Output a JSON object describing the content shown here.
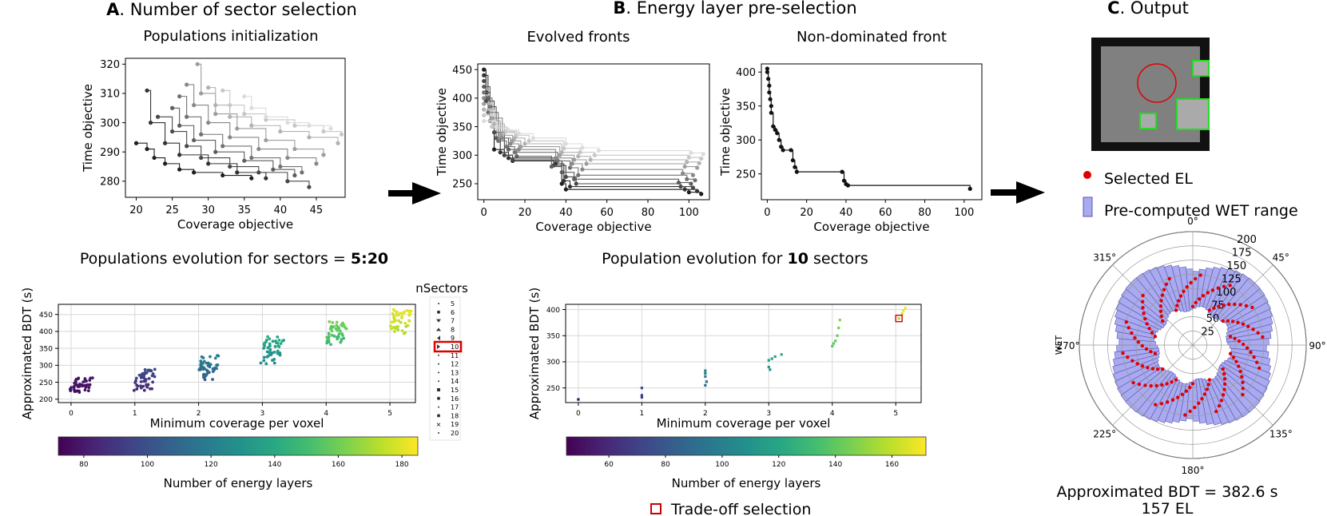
{
  "panels": {
    "a_letter": "A",
    "a_title": ". Number of sector selection",
    "b_letter": "B",
    "b_title": ". Energy layer pre-selection",
    "c_letter": "C",
    "c_title": ". Output"
  },
  "sub_titles": {
    "pop_init": "Populations initialization",
    "evolved": "Evolved fronts",
    "nondom": "Non-dominated front",
    "pop_evo_prefix": "Populations evolution for sectors = ",
    "pop_evo_bold": "5:20",
    "pop10_prefix": "Population evolution for ",
    "pop10_bold": "10",
    "pop10_suffix": " sectors"
  },
  "legend_sectors": {
    "title": "nSectors",
    "items": [
      "5",
      "6",
      "7",
      "8",
      "9",
      "10",
      "11",
      "12",
      "13",
      "14",
      "15",
      "16",
      "17",
      "18",
      "19",
      "20"
    ],
    "highlight": "10"
  },
  "output_legend": {
    "selected_el": "Selected EL",
    "wet_range": "Pre-computed WET range",
    "tradeoff": "Trade-off selection"
  },
  "result": {
    "bdt": "Approximated BDT = 382.6 s",
    "el": "157 EL"
  },
  "colors": {
    "purple": "#440154",
    "yellow": "#fde725",
    "red": "#e00000",
    "wet_fill": "#aaaaee",
    "wet_stroke": "#5555bb",
    "green": "#22dd22",
    "frame_dark": "#222222",
    "frame_mid": "#777777",
    "frame_light": "#bbbbbb"
  },
  "chart_data": [
    {
      "id": "pop_init",
      "type": "line",
      "title": "Populations initialization",
      "xlabel": "Coverage objective",
      "ylabel": "Time objective",
      "xlim": [
        18.5,
        49
      ],
      "ylim": [
        274.5,
        322
      ],
      "xticks": [
        20,
        25,
        30,
        35,
        40,
        45
      ],
      "yticks": [
        280,
        290,
        300,
        310,
        320
      ],
      "series_summary": "Multiple step-shaped Pareto fronts (dark to light gray), each starting near coverage 20-35 and stepping down to ~278-300",
      "series": [
        {
          "x": [
            20,
            21.5,
            22.5,
            24,
            26,
            28,
            32,
            36
          ],
          "y": [
            293,
            291,
            288,
            286,
            284,
            283,
            282,
            281
          ]
        },
        {
          "x": [
            21.5,
            22,
            24,
            26,
            30,
            34,
            38
          ],
          "y": [
            311,
            300,
            293,
            289,
            286,
            283,
            281
          ]
        },
        {
          "x": [
            23,
            25,
            27,
            29,
            33,
            37,
            41,
            44
          ],
          "y": [
            302,
            297,
            292,
            288,
            285,
            283,
            280,
            278
          ]
        },
        {
          "x": [
            25,
            26,
            28,
            31,
            35,
            39,
            42
          ],
          "y": [
            305,
            299,
            294,
            290,
            287,
            284,
            282
          ]
        },
        {
          "x": [
            26,
            27,
            29,
            32,
            36,
            40,
            43
          ],
          "y": [
            309,
            302,
            296,
            292,
            288,
            285,
            283
          ]
        },
        {
          "x": [
            27,
            28,
            30,
            33,
            37,
            41,
            45
          ],
          "y": [
            313,
            306,
            300,
            295,
            291,
            288,
            286
          ]
        },
        {
          "x": [
            28.5,
            29,
            31,
            34,
            38,
            42,
            46
          ],
          "y": [
            320,
            310,
            303,
            298,
            294,
            291,
            289
          ]
        },
        {
          "x": [
            30,
            31,
            33,
            36,
            40,
            44,
            48
          ],
          "y": [
            312,
            306,
            302,
            299,
            297,
            295,
            293
          ]
        },
        {
          "x": [
            32,
            33,
            35,
            38,
            42,
            46,
            48.5
          ],
          "y": [
            311,
            306,
            303,
            301,
            299,
            297,
            296
          ]
        },
        {
          "x": [
            35,
            36,
            38,
            41,
            44,
            47
          ],
          "y": [
            309,
            305,
            302,
            300,
            299,
            298
          ]
        }
      ]
    },
    {
      "id": "evolved",
      "type": "line",
      "title": "Evolved fronts",
      "xlabel": "Coverage objective",
      "ylabel": "Time objective",
      "xlim": [
        -3,
        110
      ],
      "ylim": [
        222,
        460
      ],
      "xticks": [
        0,
        20,
        40,
        60,
        80,
        100
      ],
      "yticks": [
        250,
        300,
        350,
        400,
        450
      ],
      "series": [
        {
          "x": [
            0,
            1,
            3,
            5,
            10,
            14,
            36,
            38,
            40,
            100,
            106
          ],
          "y": [
            450,
            410,
            360,
            310,
            300,
            290,
            290,
            250,
            240,
            235,
            232
          ]
        },
        {
          "x": [
            0,
            2,
            4,
            8,
            12,
            35,
            39,
            42,
            98,
            104
          ],
          "y": [
            440,
            400,
            350,
            305,
            295,
            285,
            255,
            245,
            240,
            237
          ]
        },
        {
          "x": [
            0,
            1,
            5,
            10,
            14,
            34,
            40,
            45,
            96,
            102
          ],
          "y": [
            430,
            395,
            340,
            300,
            292,
            282,
            262,
            250,
            245,
            243
          ]
        },
        {
          "x": [
            0,
            3,
            6,
            12,
            16,
            33,
            38,
            44,
            95,
            101
          ],
          "y": [
            420,
            385,
            330,
            310,
            298,
            280,
            270,
            258,
            252,
            250
          ]
        },
        {
          "x": [
            0,
            2,
            7,
            11,
            15,
            36,
            42,
            46,
            99,
            103
          ],
          "y": [
            410,
            375,
            325,
            315,
            305,
            290,
            278,
            265,
            258,
            256
          ]
        },
        {
          "x": [
            0,
            4,
            9,
            13,
            17,
            35,
            43,
            48,
            97,
            102
          ],
          "y": [
            400,
            365,
            330,
            320,
            310,
            295,
            285,
            275,
            268,
            265
          ]
        },
        {
          "x": [
            0,
            3,
            8,
            14,
            18,
            37,
            44,
            50,
            98,
            104
          ],
          "y": [
            390,
            360,
            335,
            325,
            315,
            300,
            292,
            285,
            280,
            278
          ]
        },
        {
          "x": [
            0,
            5,
            10,
            15,
            20,
            38,
            46,
            52,
            99,
            105
          ],
          "y": [
            380,
            355,
            340,
            330,
            320,
            305,
            298,
            292,
            288,
            286
          ]
        },
        {
          "x": [
            0,
            4,
            11,
            16,
            22,
            39,
            47,
            54,
            100,
            106
          ],
          "y": [
            370,
            350,
            342,
            335,
            325,
            312,
            305,
            300,
            296,
            294
          ]
        },
        {
          "x": [
            0,
            6,
            12,
            17,
            24,
            40,
            48,
            56,
            101,
            107
          ],
          "y": [
            360,
            348,
            344,
            338,
            330,
            320,
            313,
            308,
            304,
            302
          ]
        }
      ]
    },
    {
      "id": "nondom",
      "type": "line",
      "title": "Non-dominated front",
      "xlabel": "Coverage objective",
      "ylabel": "Time objective",
      "xlim": [
        -3,
        109
      ],
      "ylim": [
        212,
        412
      ],
      "xticks": [
        0,
        20,
        40,
        60,
        80,
        100
      ],
      "yticks": [
        250,
        300,
        350,
        400
      ],
      "x": [
        0,
        0,
        0.5,
        1,
        1,
        1.5,
        2,
        2,
        3,
        4,
        5,
        6,
        7,
        8,
        12,
        13,
        14,
        15,
        38,
        39,
        40,
        41,
        103
      ],
      "y": [
        405,
        400,
        390,
        380,
        370,
        360,
        350,
        340,
        320,
        315,
        310,
        300,
        290,
        285,
        285,
        270,
        260,
        253,
        253,
        240,
        235,
        233,
        228
      ]
    },
    {
      "id": "pop_evo",
      "type": "scatter",
      "title": "Populations evolution for sectors = 5:20",
      "xlabel": "Minimum coverage per voxel",
      "ylabel": "Approximated BDT (s)",
      "xlim": [
        -0.2,
        5.4
      ],
      "ylim": [
        190,
        480
      ],
      "xticks": [
        0,
        1,
        2,
        3,
        4,
        5
      ],
      "yticks": [
        200,
        250,
        300,
        350,
        400,
        450
      ],
      "colorbar": {
        "label": "Number of energy layers",
        "range": [
          72,
          185
        ],
        "ticks": [
          80,
          100,
          120,
          140,
          160,
          180
        ]
      },
      "clusters": [
        {
          "x": 0,
          "y": [
            210,
            265
          ],
          "c": [
            75,
            80
          ]
        },
        {
          "x": 1,
          "y": [
            210,
            290
          ],
          "c": [
            80,
            100
          ]
        },
        {
          "x": 2,
          "y": [
            245,
            330
          ],
          "c": [
            100,
            125
          ]
        },
        {
          "x": 3,
          "y": [
            290,
            385
          ],
          "c": [
            120,
            145
          ]
        },
        {
          "x": 4,
          "y": [
            345,
            430
          ],
          "c": [
            140,
            165
          ]
        },
        {
          "x": 5,
          "y": [
            375,
            465
          ],
          "c": [
            165,
            185
          ]
        }
      ]
    },
    {
      "id": "pop10",
      "type": "scatter",
      "title": "Population evolution for 10 sectors",
      "xlabel": "Minimum coverage per voxel",
      "ylabel": "Approximated BDT (s)",
      "xlim": [
        -0.2,
        5.4
      ],
      "ylim": [
        222,
        410
      ],
      "xticks": [
        0,
        1,
        2,
        3,
        4,
        5
      ],
      "yticks": [
        250,
        300,
        350,
        400
      ],
      "colorbar": {
        "label": "Number of energy layers",
        "range": [
          45,
          172
        ],
        "ticks": [
          60,
          80,
          100,
          120,
          140,
          160
        ]
      },
      "points": [
        {
          "x": 0,
          "y": 228,
          "c": 50
        },
        {
          "x": 1,
          "y": 250,
          "c": 72
        },
        {
          "x": 1,
          "y": 236,
          "c": 70
        },
        {
          "x": 1,
          "y": 232,
          "c": 68
        },
        {
          "x": 2,
          "y": 283,
          "c": 100
        },
        {
          "x": 2,
          "y": 278,
          "c": 98
        },
        {
          "x": 2,
          "y": 272,
          "c": 96
        },
        {
          "x": 2.02,
          "y": 262,
          "c": 94
        },
        {
          "x": 2,
          "y": 255,
          "c": 92
        },
        {
          "x": 3,
          "y": 303,
          "c": 115
        },
        {
          "x": 3.05,
          "y": 306,
          "c": 118
        },
        {
          "x": 3.1,
          "y": 310,
          "c": 120
        },
        {
          "x": 3.2,
          "y": 314,
          "c": 124
        },
        {
          "x": 3,
          "y": 290,
          "c": 113
        },
        {
          "x": 3.02,
          "y": 285,
          "c": 112
        },
        {
          "x": 4,
          "y": 330,
          "c": 138
        },
        {
          "x": 4.05,
          "y": 340,
          "c": 140
        },
        {
          "x": 4.08,
          "y": 350,
          "c": 142
        },
        {
          "x": 4.1,
          "y": 365,
          "c": 145
        },
        {
          "x": 4.12,
          "y": 380,
          "c": 148
        },
        {
          "x": 4.02,
          "y": 335,
          "c": 139
        },
        {
          "x": 5.05,
          "y": 383,
          "c": 157
        },
        {
          "x": 5.1,
          "y": 392,
          "c": 162
        },
        {
          "x": 5.12,
          "y": 398,
          "c": 166
        },
        {
          "x": 5.15,
          "y": 403,
          "c": 170
        }
      ],
      "tradeoff": {
        "x": 5.05,
        "y": 383
      }
    },
    {
      "id": "polar",
      "type": "bar",
      "title": "",
      "ylabel": "WET",
      "angle_labels": [
        "0°",
        "45°",
        "90°",
        "135°",
        "180°",
        "225°",
        "270°",
        "315°"
      ],
      "radial_ticks": [
        25,
        50,
        75,
        100,
        125,
        150,
        175,
        200
      ],
      "rlim": [
        0,
        200
      ],
      "wet_range": [
        65,
        130
      ]
    }
  ]
}
